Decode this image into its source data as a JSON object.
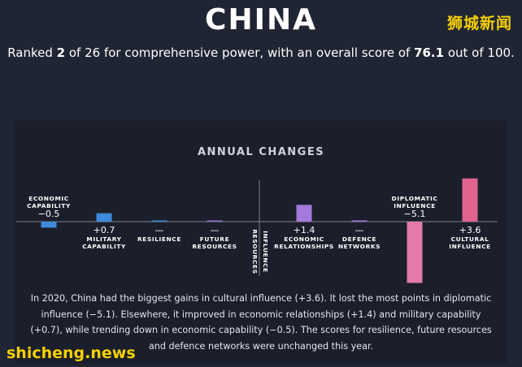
{
  "header": {
    "title": "CHINA",
    "watermark": "狮城新闻",
    "subtitle_pre": "Ranked ",
    "rank": "2",
    "subtitle_mid": " of 26 for comprehensive power, with an overall score of ",
    "score": "76.1",
    "subtitle_post": " out of 100."
  },
  "chart_data": {
    "type": "bar",
    "title": "ANNUAL CHANGES",
    "categories": [
      [
        "ECONOMIC",
        "CAPABILITY"
      ],
      [
        "MILITARY",
        "CAPABILITY"
      ],
      [
        "RESILIENCE"
      ],
      [
        "FUTURE",
        "RESOURCES"
      ],
      [
        "ECONOMIC",
        "RELATIONSHIPS"
      ],
      [
        "DEFENCE",
        "NETWORKS"
      ],
      [
        "DIPLOMATIC",
        "INFLUENCE"
      ],
      [
        "CULTURAL",
        "INFLUENCE"
      ]
    ],
    "values": [
      -0.5,
      0.7,
      0,
      0,
      1.4,
      0,
      -5.1,
      3.6
    ],
    "value_labels": [
      "−0.5",
      "+0.7",
      "—",
      "—",
      "+1.4",
      "—",
      "−5.1",
      "+3.6"
    ],
    "colors": [
      "#3d8bd9",
      "#3d8bd9",
      "#3d8bd9",
      "#9a73d6",
      "#a379db",
      "#a379db",
      "#e27aaa",
      "#e0628f"
    ],
    "groups": [
      "RESOURCES",
      "INFLUENCE"
    ]
  },
  "caption": "In 2020, China had the biggest gains in cultural influence (+3.6). It lost the most points in diplomatic influence (−5.1). Elsewhere, it improved in economic relationships (+1.4) and military capability (+0.7), while trending down in economic capability (−0.5). The scores for resilience, future resources and defence networks were unchanged this year.",
  "footer": {
    "watermark": "shicheng.news"
  }
}
